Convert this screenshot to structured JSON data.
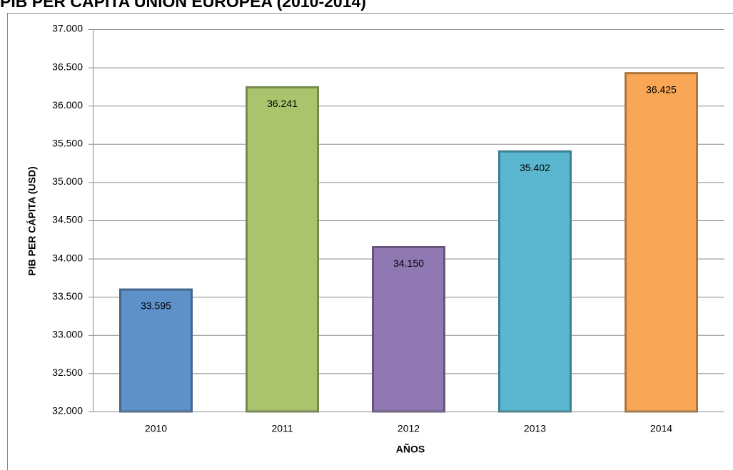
{
  "chart_data": {
    "type": "bar",
    "title": "PIB PER CÁPITA UNIÓN EUROPEA (2010-2014)",
    "y_label": "PIB PER CÁPITA (USD)",
    "x_label": "AÑOS",
    "categories": [
      "2010",
      "2011",
      "2012",
      "2013",
      "2014"
    ],
    "values": [
      33595,
      36241,
      34150,
      35402,
      36425
    ],
    "value_labels": [
      "33.595",
      "36.241",
      "34.150",
      "35.402",
      "36.425"
    ],
    "colors": [
      "#5f91c9",
      "#a9c46c",
      "#9079b2",
      "#5bb7d0",
      "#f9a756"
    ],
    "ylim": [
      32000,
      37000
    ],
    "yticks": [
      {
        "value": 32000,
        "label": "32.000"
      },
      {
        "value": 32500,
        "label": "32.500"
      },
      {
        "value": 33000,
        "label": "33.000"
      },
      {
        "value": 33500,
        "label": "33.500"
      },
      {
        "value": 34000,
        "label": "34.000"
      },
      {
        "value": 34500,
        "label": "34.500"
      },
      {
        "value": 35000,
        "label": "35.000"
      },
      {
        "value": 35500,
        "label": "35.500"
      },
      {
        "value": 36000,
        "label": "36.000"
      },
      {
        "value": 36500,
        "label": "36.500"
      },
      {
        "value": 37000,
        "label": "37.000"
      }
    ],
    "grid": true
  }
}
